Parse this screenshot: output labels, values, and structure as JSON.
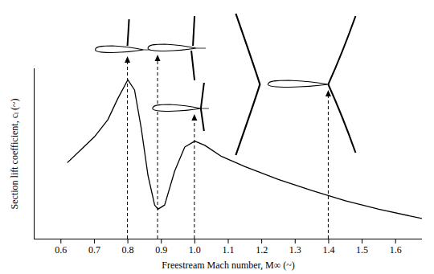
{
  "chart_data": {
    "type": "line",
    "x_label": "Freestream Mach number, M∞ (~)",
    "y_label": "Section lift coefficient, cₗ (~)",
    "x": [
      0.62,
      0.66,
      0.7,
      0.74,
      0.77,
      0.8,
      0.82,
      0.84,
      0.86,
      0.88,
      0.89,
      0.91,
      0.94,
      0.97,
      1.0,
      1.03,
      1.08,
      1.15,
      1.25,
      1.35,
      1.45,
      1.55,
      1.68
    ],
    "values": [
      0.45,
      0.525,
      0.6,
      0.7,
      0.825,
      0.935,
      0.875,
      0.65,
      0.375,
      0.2,
      0.175,
      0.2,
      0.4,
      0.54,
      0.575,
      0.55,
      0.485,
      0.425,
      0.35,
      0.285,
      0.225,
      0.175,
      0.12
    ],
    "color": "#000000",
    "xlim": [
      0.52,
      1.68
    ],
    "ylim": [
      0,
      1
    ],
    "xticks": [
      0.6,
      0.7,
      0.8,
      0.9,
      {
        "value": 1.0,
        "label": "1.0"
      },
      1.1,
      1.2,
      1.3,
      1.4,
      1.5,
      1.6
    ],
    "tick_labels": "x",
    "grid": false,
    "annotations": [
      {
        "x": 0.8
      },
      {
        "x": 0.89
      },
      {
        "x": 1.0
      },
      {
        "x": 1.4
      }
    ]
  }
}
